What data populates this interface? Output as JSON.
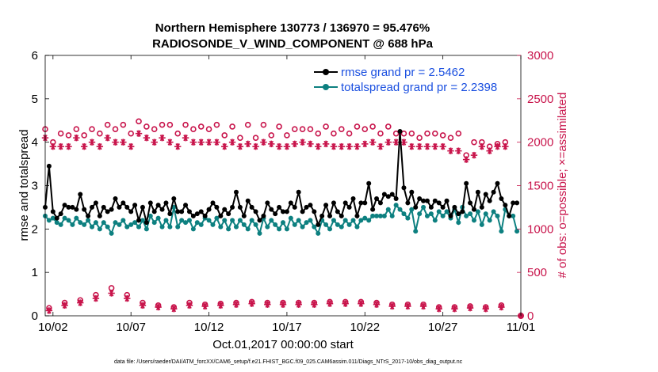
{
  "chart_data": {
    "type": "line",
    "title_line1": "Northern Hemisphere 130773 / 136970 = 95.476%",
    "title_line2": "RADIOSONDE_V_WIND_COMPONENT @ 688 hPa",
    "xlabel": "Oct.01,2017 00:00:00 start",
    "ylabel": "rmse and totalspread",
    "ylabel_right": "# of obs: o=possible; ×=assimilated",
    "footer": "data file: /Users/raeder/DAI/ATM_forcXX/CAM6_setup/f.e21.FHIST_BGC.f09_025.CAM6assim.011/Diags_NTrS_2017-10/obs_diag_output.nc",
    "xlim": [
      0.5,
      31.0
    ],
    "ylim": [
      0,
      6
    ],
    "ylim_right": [
      0,
      3000
    ],
    "x_ticks": [
      1,
      6,
      11,
      16,
      21,
      26,
      31
    ],
    "x_tick_labels": [
      "10/02",
      "10/07",
      "10/12",
      "10/17",
      "10/22",
      "10/27",
      "11/01"
    ],
    "y_ticks": [
      0,
      1,
      2,
      3,
      4,
      5,
      6
    ],
    "y_tick_labels": [
      "0",
      "1",
      "2",
      "3",
      "4",
      "5",
      "6"
    ],
    "y_ticks_right": [
      0,
      500,
      1000,
      1500,
      2000,
      2500,
      3000
    ],
    "y_tick_labels_right": [
      "0",
      "500",
      "1000",
      "1500",
      "2000",
      "2500",
      "3000"
    ],
    "x": [
      0.5,
      0.75,
      1.0,
      1.25,
      1.5,
      1.75,
      2.0,
      2.25,
      2.5,
      2.75,
      3.0,
      3.25,
      3.5,
      3.75,
      4.0,
      4.25,
      4.5,
      4.75,
      5.0,
      5.25,
      5.5,
      5.75,
      6.0,
      6.25,
      6.5,
      6.75,
      7.0,
      7.25,
      7.5,
      7.75,
      8.0,
      8.25,
      8.5,
      8.75,
      9.0,
      9.25,
      9.5,
      9.75,
      10.0,
      10.25,
      10.5,
      10.75,
      11.0,
      11.25,
      11.5,
      11.75,
      12.0,
      12.25,
      12.5,
      12.75,
      13.0,
      13.25,
      13.5,
      13.75,
      14.0,
      14.25,
      14.5,
      14.75,
      15.0,
      15.25,
      15.5,
      15.75,
      16.0,
      16.25,
      16.5,
      16.75,
      17.0,
      17.25,
      17.5,
      17.75,
      18.0,
      18.25,
      18.5,
      18.75,
      19.0,
      19.25,
      19.5,
      19.75,
      20.0,
      20.25,
      20.5,
      20.75,
      21.0,
      21.25,
      21.5,
      21.75,
      22.0,
      22.25,
      22.5,
      22.75,
      23.0,
      23.25,
      23.5,
      23.75,
      24.0,
      24.25,
      24.5,
      24.75,
      25.0,
      25.25,
      25.5,
      25.75,
      26.0,
      26.25,
      26.5,
      26.75,
      27.0,
      27.25,
      27.5,
      27.75,
      28.0,
      28.25,
      28.5,
      28.75,
      29.0,
      29.25,
      29.5,
      29.75,
      30.0,
      30.25,
      30.5,
      30.75
    ],
    "series": [
      {
        "name": "rmse grand pr = 2.5462",
        "color": "#000000",
        "marker": "dot",
        "axis": "left",
        "values": [
          2.5,
          3.45,
          2.4,
          2.25,
          2.35,
          2.55,
          2.5,
          2.5,
          2.45,
          2.8,
          2.45,
          2.3,
          2.5,
          2.6,
          2.3,
          2.5,
          2.4,
          2.45,
          2.7,
          2.5,
          2.6,
          2.5,
          2.4,
          2.55,
          2.2,
          2.5,
          2.15,
          2.6,
          2.4,
          2.55,
          2.45,
          2.6,
          2.35,
          2.7,
          2.4,
          2.4,
          2.55,
          2.4,
          2.3,
          2.35,
          2.4,
          2.3,
          2.45,
          2.6,
          2.5,
          2.3,
          2.45,
          2.35,
          2.5,
          2.85,
          2.5,
          2.3,
          2.65,
          2.5,
          2.4,
          2.2,
          2.3,
          2.6,
          2.45,
          2.35,
          2.5,
          2.4,
          2.4,
          2.6,
          2.5,
          2.85,
          2.4,
          2.5,
          2.55,
          2.4,
          2.1,
          2.3,
          2.55,
          2.3,
          2.6,
          2.4,
          2.3,
          2.6,
          2.5,
          2.7,
          2.3,
          2.6,
          2.6,
          3.05,
          2.45,
          2.7,
          2.6,
          2.8,
          2.75,
          2.8,
          2.7,
          4.25,
          2.95,
          2.6,
          2.85,
          2.5,
          2.7,
          2.65,
          2.65,
          2.5,
          2.65,
          2.6,
          2.5,
          2.65,
          2.3,
          2.5,
          2.35,
          2.4,
          3.05,
          2.6,
          2.45,
          2.85,
          2.5,
          2.8,
          2.65,
          2.85,
          3.05,
          2.7,
          2.55,
          2.3,
          2.6,
          2.6
        ]
      },
      {
        "name": "totalspread grand pr = 2.2398",
        "color": "#0d8080",
        "marker": "dot",
        "axis": "left",
        "values": [
          2.3,
          2.2,
          2.25,
          2.15,
          2.1,
          2.25,
          2.2,
          2.1,
          2.25,
          2.15,
          2.1,
          2.2,
          2.05,
          2.15,
          2.0,
          2.15,
          2.05,
          1.9,
          2.15,
          2.1,
          2.2,
          2.05,
          2.1,
          2.15,
          2.05,
          2.2,
          2.0,
          2.3,
          2.15,
          2.25,
          2.05,
          2.2,
          2.05,
          2.5,
          2.05,
          2.2,
          2.15,
          2.2,
          2.0,
          2.15,
          2.1,
          2.25,
          2.2,
          2.1,
          2.25,
          2.05,
          2.2,
          2.0,
          2.2,
          2.05,
          2.2,
          2.1,
          2.0,
          2.2,
          2.1,
          1.9,
          2.25,
          2.05,
          2.2,
          2.1,
          2.0,
          2.15,
          2.0,
          2.25,
          2.1,
          2.2,
          2.05,
          2.15,
          2.2,
          2.05,
          1.9,
          2.2,
          2.1,
          2.0,
          2.2,
          2.1,
          2.05,
          2.2,
          2.1,
          2.2,
          2.05,
          2.2,
          2.25,
          2.2,
          2.3,
          2.3,
          2.3,
          2.3,
          2.45,
          2.3,
          2.55,
          2.45,
          2.35,
          2.25,
          2.45,
          1.95,
          2.35,
          2.5,
          2.3,
          2.35,
          2.2,
          2.4,
          2.3,
          2.4,
          2.25,
          2.45,
          2.15,
          2.5,
          2.3,
          2.35,
          2.2,
          2.4,
          2.1,
          2.35,
          2.2,
          2.4,
          2.3,
          1.95,
          2.45,
          2.3,
          2.3,
          1.95
        ]
      }
    ],
    "obs_series": [
      {
        "name": "possible",
        "marker": "o",
        "color": "#c8144b",
        "axis": "right",
        "values_0000": [
          2150,
          2100,
          2150,
          2150,
          2200,
          2200,
          2240,
          2150,
          2200,
          2200,
          2180,
          2200,
          2180,
          2200,
          2200,
          2180,
          2150,
          2150,
          2180,
          2150,
          2180,
          2180,
          2180,
          2100,
          2050,
          2100,
          2050,
          1850,
          2000,
          1980
        ],
        "values_1200": [
          2000,
          2080,
          2080,
          2100,
          2150,
          2100,
          2180,
          2200,
          2100,
          2150,
          2150,
          2080,
          2050,
          2050,
          2080,
          2080,
          2150,
          2100,
          2100,
          2100,
          2150,
          2100,
          2100,
          2100,
          2100,
          2080,
          2100,
          2000,
          1950,
          2000
        ],
        "values_low": [
          90,
          150,
          180,
          240,
          320,
          240,
          150,
          120,
          100,
          150,
          130,
          140,
          150,
          160,
          150,
          150,
          150,
          150,
          160,
          160,
          160,
          150,
          130,
          130,
          130,
          100,
          100,
          110,
          100,
          120
        ]
      },
      {
        "name": "assimilated",
        "marker": "*",
        "color": "#c8144b",
        "axis": "right",
        "values_0000": [
          2050,
          1950,
          2050,
          2000,
          2050,
          2000,
          2100,
          2000,
          2000,
          2050,
          2000,
          2000,
          2000,
          1980,
          2000,
          1950,
          1980,
          1980,
          1980,
          1950,
          1950,
          2000,
          2000,
          2000,
          1950,
          1950,
          1900,
          1800,
          1950,
          1950
        ],
        "values_1200": [
          1950,
          1950,
          1950,
          1950,
          2000,
          1950,
          2050,
          2050,
          1950,
          2000,
          2000,
          1950,
          1950,
          1950,
          1980,
          1950,
          2000,
          1950,
          1950,
          1950,
          1980,
          1950,
          2000,
          1950,
          1950,
          1950,
          1900,
          1850,
          1900,
          1950
        ],
        "values_low": [
          60,
          120,
          150,
          200,
          260,
          200,
          120,
          100,
          80,
          120,
          110,
          120,
          130,
          140,
          130,
          130,
          130,
          130,
          140,
          140,
          140,
          130,
          110,
          110,
          110,
          80,
          80,
          90,
          80,
          100
        ]
      }
    ],
    "legend": {
      "position": "top-right",
      "entries": [
        {
          "label": "rmse grand pr = 2.5462",
          "color": "#000000"
        },
        {
          "label": "totalspread grand pr = 2.2398",
          "color": "#0d8080"
        }
      ]
    }
  }
}
